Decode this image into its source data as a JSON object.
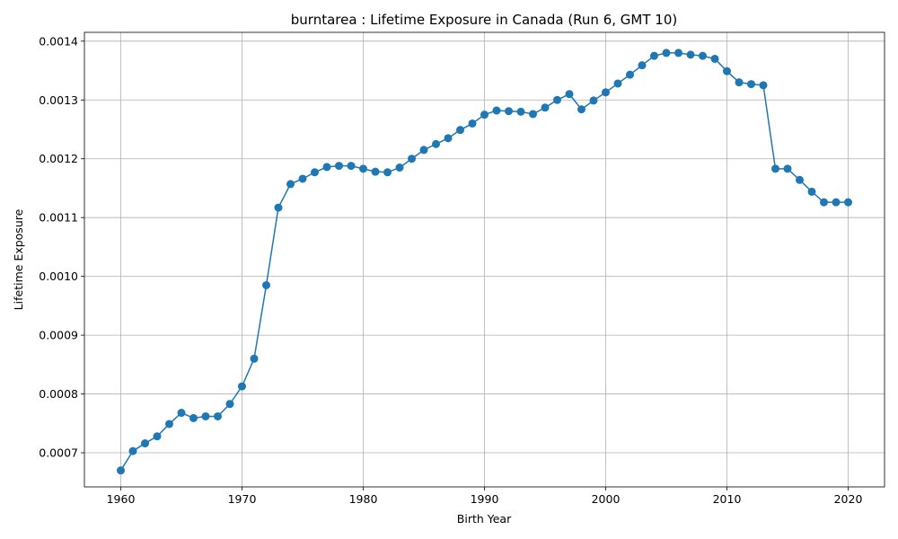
{
  "chart_data": {
    "type": "line",
    "title": "burntarea : Lifetime Exposure in Canada (Run 6, GMT 10)",
    "xlabel": "Birth Year",
    "ylabel": "Lifetime Exposure",
    "xlim": [
      1957,
      2023
    ],
    "ylim": [
      0.000642,
      0.001415
    ],
    "xticks": [
      1960,
      1970,
      1980,
      1990,
      2000,
      2010,
      2020
    ],
    "xtick_labels": [
      "1960",
      "1970",
      "1980",
      "1990",
      "2000",
      "2010",
      "2020"
    ],
    "yticks": [
      0.0007,
      0.0008,
      0.0009,
      0.001,
      0.0011,
      0.0012,
      0.0013,
      0.0014
    ],
    "ytick_labels": [
      "0.0007",
      "0.0008",
      "0.0009",
      "0.0010",
      "0.0011",
      "0.0012",
      "0.0013",
      "0.0014"
    ],
    "grid": true,
    "color": "#1f77b4",
    "x": [
      1960,
      1961,
      1962,
      1963,
      1964,
      1965,
      1966,
      1967,
      1968,
      1969,
      1970,
      1971,
      1972,
      1973,
      1974,
      1975,
      1976,
      1977,
      1978,
      1979,
      1980,
      1981,
      1982,
      1983,
      1984,
      1985,
      1986,
      1987,
      1988,
      1989,
      1990,
      1991,
      1992,
      1993,
      1994,
      1995,
      1996,
      1997,
      1998,
      1999,
      2000,
      2001,
      2002,
      2003,
      2004,
      2005,
      2006,
      2007,
      2008,
      2009,
      2010,
      2011,
      2012,
      2013,
      2014,
      2015,
      2016,
      2017,
      2018,
      2019,
      2020
    ],
    "y": [
      0.00067,
      0.000703,
      0.000716,
      0.000728,
      0.000749,
      0.000768,
      0.000759,
      0.000762,
      0.000762,
      0.000783,
      0.000813,
      0.00086,
      0.000985,
      0.001117,
      0.001157,
      0.001166,
      0.001177,
      0.001186,
      0.001188,
      0.001188,
      0.001183,
      0.001178,
      0.001177,
      0.001185,
      0.0012,
      0.001215,
      0.001225,
      0.001235,
      0.001249,
      0.00126,
      0.001275,
      0.001282,
      0.001281,
      0.00128,
      0.001276,
      0.001287,
      0.0013,
      0.00131,
      0.001284,
      0.001299,
      0.001313,
      0.001328,
      0.001343,
      0.001359,
      0.001375,
      0.00138,
      0.00138,
      0.001377,
      0.001375,
      0.00137,
      0.001349,
      0.00133,
      0.001327,
      0.001325,
      0.001183,
      0.001183,
      0.001164,
      0.001144,
      0.001126,
      0.001126,
      0.001126
    ]
  }
}
